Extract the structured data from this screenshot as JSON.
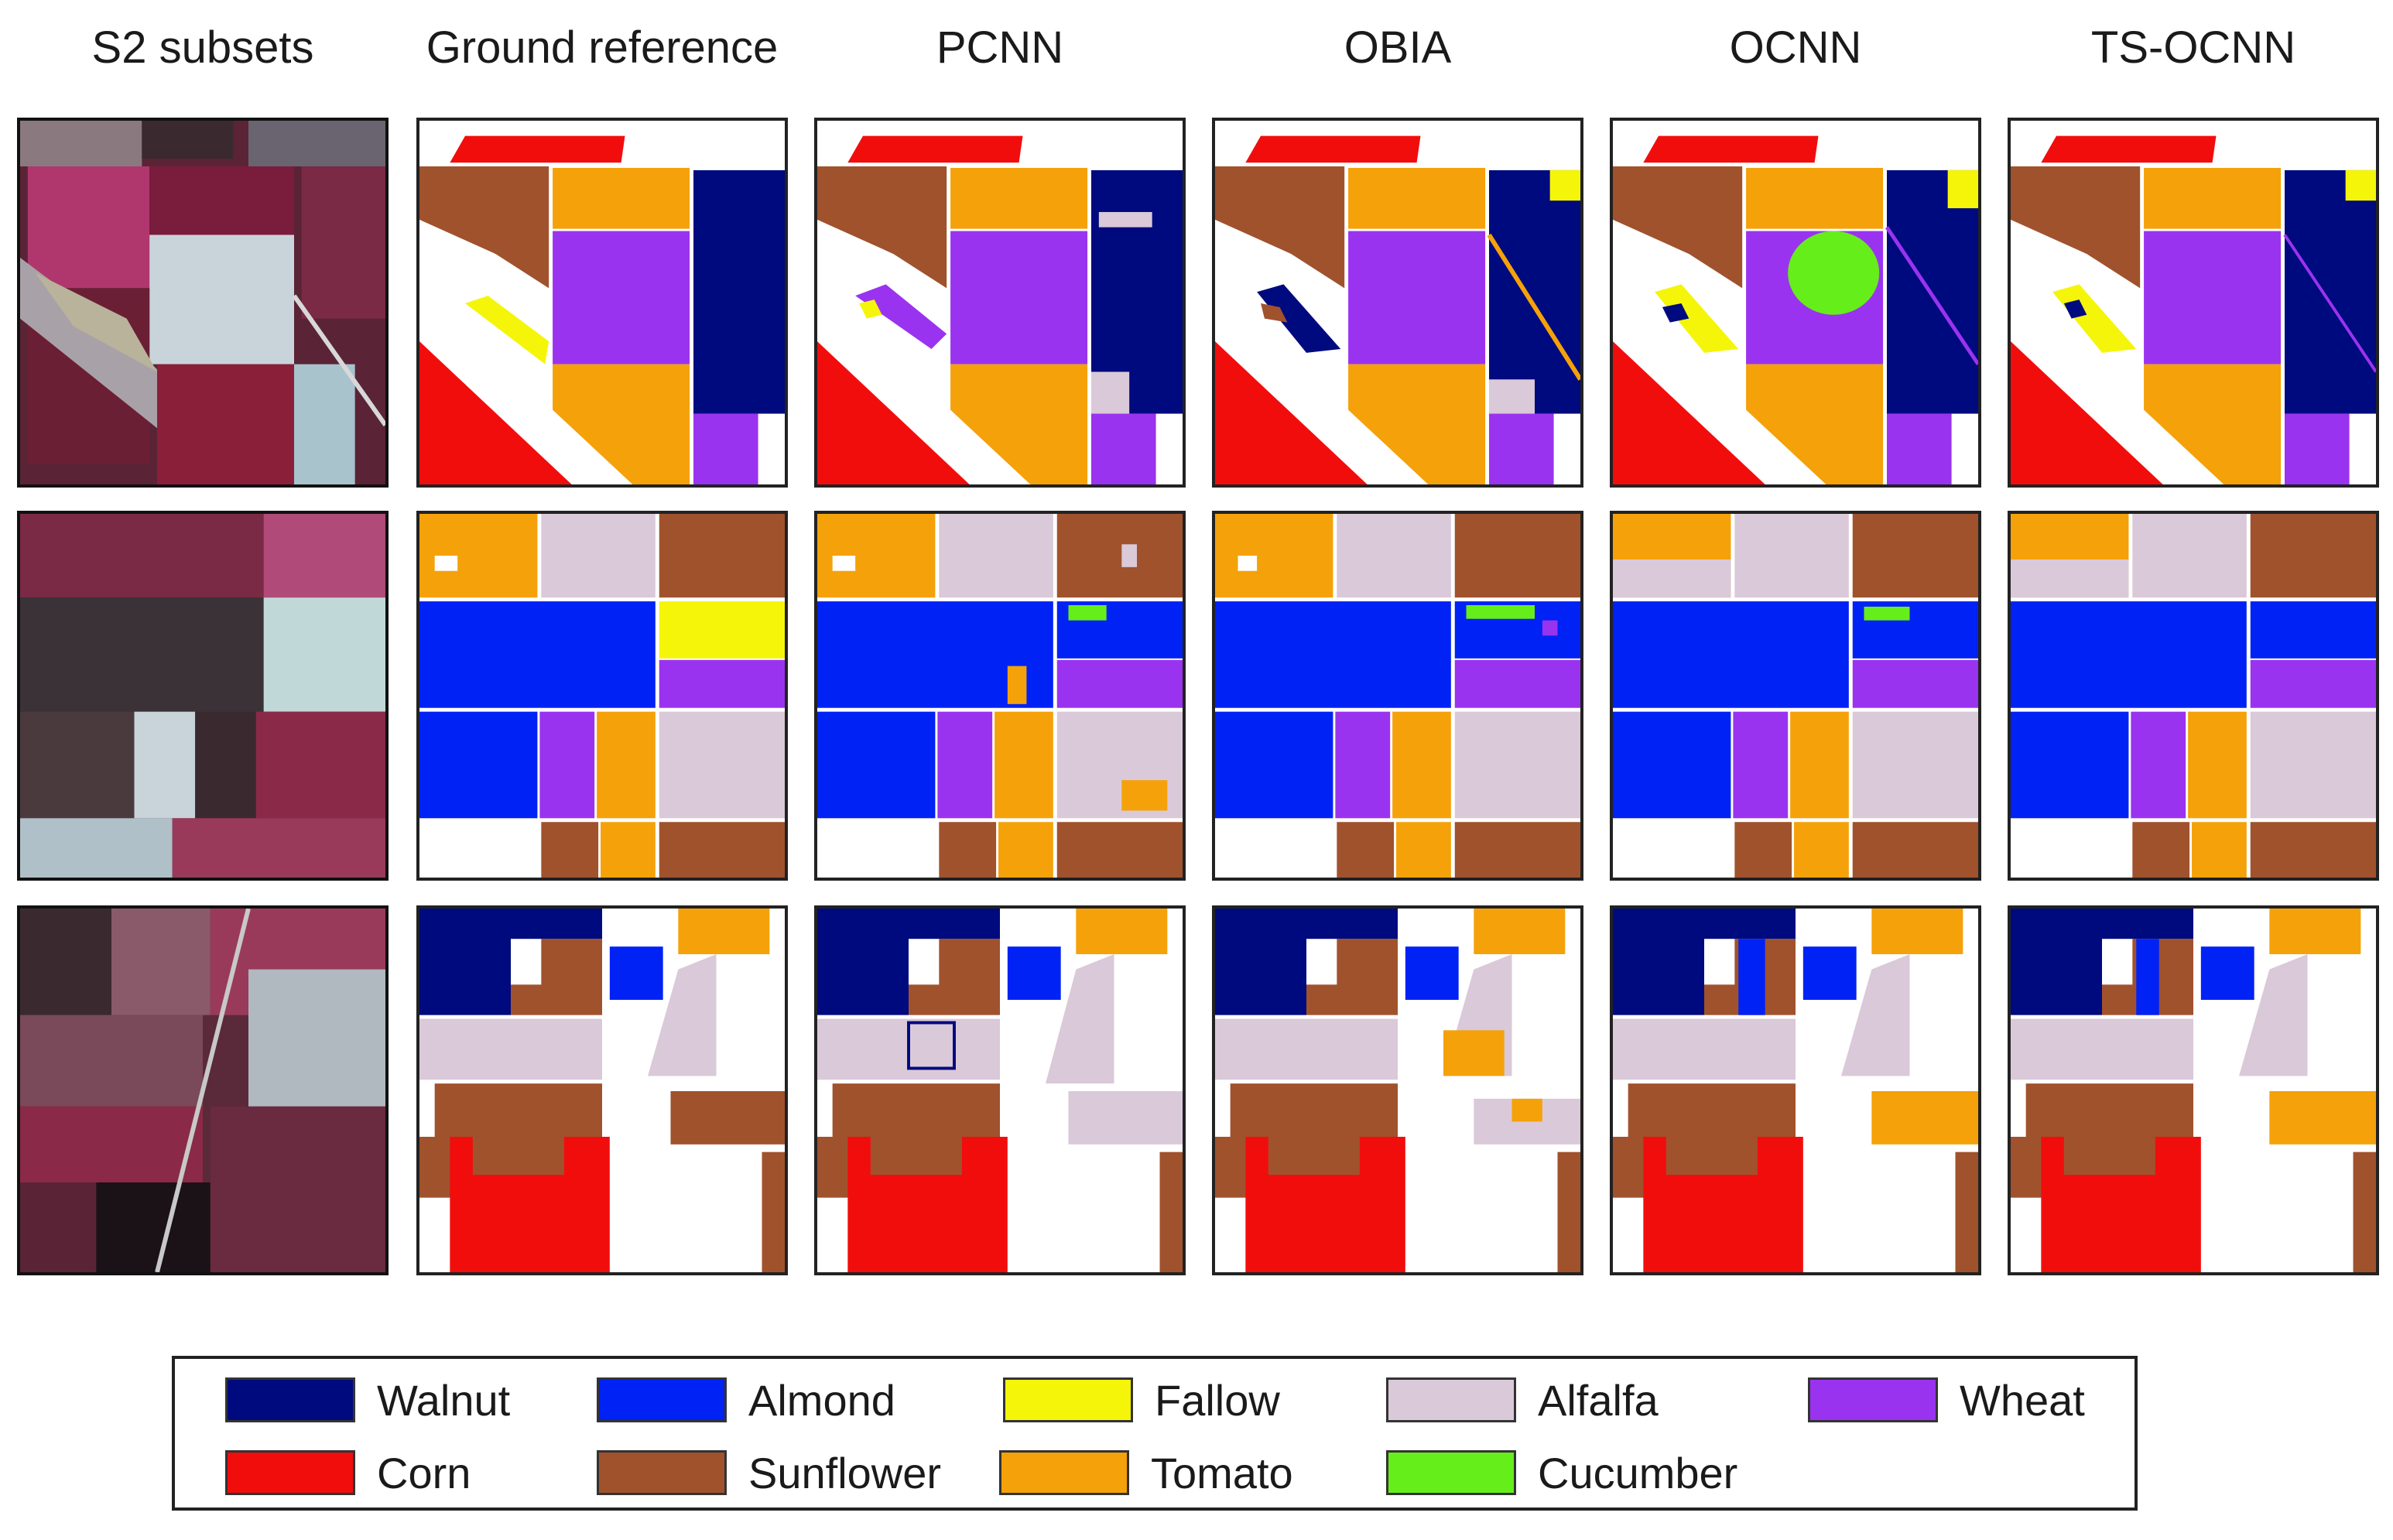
{
  "columns": [
    "S2 subsets",
    "Ground reference",
    "PCNN",
    "OBIA",
    "OCNN",
    "TS-OCNN"
  ],
  "legend": [
    {
      "label": "Walnut",
      "color": "#000a7f"
    },
    {
      "label": "Almond",
      "color": "#0022f5"
    },
    {
      "label": "Fallow",
      "color": "#f5f50a"
    },
    {
      "label": "Alfalfa",
      "color": "#dac9d8"
    },
    {
      "label": "Wheat",
      "color": "#9a33ef"
    },
    {
      "label": "Corn",
      "color": "#f20d0d"
    },
    {
      "label": "Sunflower",
      "color": "#a0522d"
    },
    {
      "label": "Tomato",
      "color": "#f5a10a"
    },
    {
      "label": "Cucumber",
      "color": "#66ee1a"
    }
  ]
}
